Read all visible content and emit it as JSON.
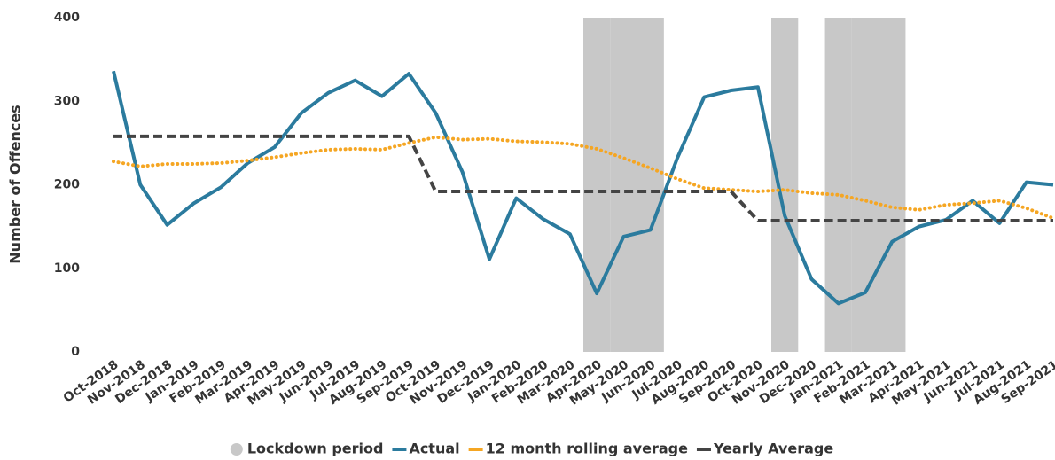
{
  "chart_data": {
    "type": "line",
    "y_label": "Number of Offences",
    "categories": [
      "Oct-2018",
      "Nov-2018",
      "Dec-2018",
      "Jan-2019",
      "Feb-2019",
      "Mar-2019",
      "Apr-2019",
      "May-2019",
      "Jun-2019",
      "Jul-2019",
      "Aug-2019",
      "Sep-2019",
      "Oct-2019",
      "Nov-2019",
      "Dec-2019",
      "Jan-2020",
      "Feb-2020",
      "Mar-2020",
      "Apr-2020",
      "May-2020",
      "Jun-2020",
      "Jul-2020",
      "Aug-2020",
      "Sep-2020",
      "Oct-2020",
      "Nov-2020",
      "Dec-2020",
      "Jan-2021",
      "Feb-2021",
      "Mar-2021",
      "Apr-2021",
      "May-2021",
      "Jun-2021",
      "Jul-2021",
      "Aug-2021",
      "Sep-2021"
    ],
    "series": [
      {
        "name": "Lockdown period",
        "type": "bar",
        "color": "#c8c8c8",
        "values": [
          null,
          null,
          null,
          null,
          null,
          null,
          null,
          null,
          null,
          null,
          null,
          null,
          null,
          null,
          null,
          null,
          null,
          null,
          400,
          400,
          400,
          null,
          null,
          null,
          null,
          400,
          null,
          400,
          400,
          400,
          null,
          null,
          null,
          null,
          null,
          null
        ]
      },
      {
        "name": "Actual",
        "type": "line",
        "color": "#2b7b9e",
        "dash": "solid",
        "values": [
          336,
          200,
          152,
          178,
          197,
          226,
          245,
          286,
          310,
          325,
          306,
          333,
          286,
          215,
          111,
          184,
          159,
          141,
          70,
          138,
          146,
          232,
          305,
          313,
          317,
          163,
          87,
          58,
          71,
          132,
          150,
          158,
          181,
          154,
          203,
          200
        ]
      },
      {
        "name": "12 month rolling average",
        "type": "line",
        "color": "#f5a623",
        "dash": "dotted",
        "values": [
          228,
          222,
          225,
          225,
          226,
          229,
          233,
          238,
          242,
          243,
          242,
          250,
          257,
          254,
          255,
          252,
          251,
          249,
          243,
          232,
          220,
          207,
          196,
          194,
          192,
          194,
          190,
          188,
          181,
          173,
          170,
          176,
          178,
          181,
          172,
          160
        ]
      },
      {
        "name": "Yearly Average",
        "type": "line",
        "color": "#444444",
        "dash": "dashed",
        "values": [
          258,
          258,
          258,
          258,
          258,
          258,
          258,
          258,
          258,
          258,
          258,
          258,
          192,
          192,
          192,
          192,
          192,
          192,
          192,
          192,
          192,
          192,
          192,
          192,
          157,
          157,
          157,
          157,
          157,
          157,
          157,
          157,
          157,
          157,
          157,
          157
        ]
      }
    ],
    "ylim": [
      0,
      400
    ],
    "yticks": [
      0,
      100,
      200,
      300,
      400
    ],
    "grid": false,
    "legend": "bottom"
  }
}
